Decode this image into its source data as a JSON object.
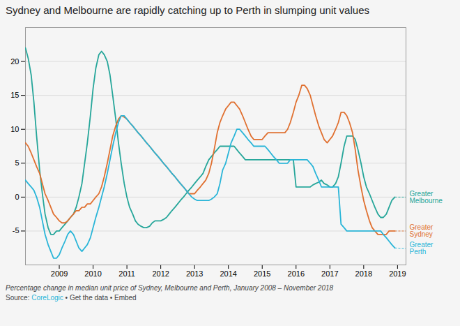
{
  "chart_data": {
    "type": "line",
    "title": "Sydney and Melbourne are rapidly catching up to Perth in slumping unit values",
    "subtitle": "Percentage change in median unit price of Sydney, Melbourne and Perth, January 2008 – November 2018",
    "source_text": "Source: ",
    "source_link": "CoreLogic",
    "source_extra": " • Get the data • Embed",
    "x": [
      2008.0,
      2008.08,
      2008.17,
      2008.25,
      2008.33,
      2008.42,
      2008.5,
      2008.58,
      2008.67,
      2008.75,
      2008.83,
      2008.92,
      2009.0,
      2009.08,
      2009.17,
      2009.25,
      2009.33,
      2009.42,
      2009.5,
      2009.58,
      2009.67,
      2009.75,
      2009.83,
      2009.92,
      2010.0,
      2010.08,
      2010.17,
      2010.25,
      2010.33,
      2010.42,
      2010.5,
      2010.58,
      2010.67,
      2010.75,
      2010.83,
      2010.92,
      2011.0,
      2011.08,
      2011.17,
      2011.25,
      2011.33,
      2011.42,
      2011.5,
      2011.58,
      2011.67,
      2011.75,
      2011.83,
      2011.92,
      2012.0,
      2012.08,
      2012.17,
      2012.25,
      2012.33,
      2012.42,
      2012.5,
      2012.58,
      2012.67,
      2012.75,
      2012.83,
      2012.92,
      2013.0,
      2013.08,
      2013.17,
      2013.25,
      2013.33,
      2013.42,
      2013.5,
      2013.58,
      2013.67,
      2013.75,
      2013.83,
      2013.92,
      2014.0,
      2014.08,
      2014.17,
      2014.25,
      2014.33,
      2014.42,
      2014.5,
      2014.58,
      2014.67,
      2014.75,
      2014.83,
      2014.92,
      2015.0,
      2015.08,
      2015.17,
      2015.25,
      2015.33,
      2015.42,
      2015.5,
      2015.58,
      2015.67,
      2015.75,
      2015.83,
      2015.92,
      2016.0,
      2016.08,
      2016.17,
      2016.25,
      2016.33,
      2016.42,
      2016.5,
      2016.58,
      2016.67,
      2016.75,
      2016.83,
      2016.92,
      2017.0,
      2017.08,
      2017.17,
      2017.25,
      2017.33,
      2017.42,
      2017.5,
      2017.58,
      2017.67,
      2017.75,
      2017.83,
      2017.92,
      2018.0,
      2018.08,
      2018.17,
      2018.25,
      2018.33,
      2018.42,
      2018.5,
      2018.58,
      2018.67,
      2018.75,
      2018.83,
      2018.92
    ],
    "series": [
      {
        "name": "Greater\nMelbourne",
        "color": "#26a69a",
        "values": [
          22.0,
          20.5,
          18.0,
          14.0,
          9.0,
          4.0,
          0.5,
          -2.5,
          -4.5,
          -5.5,
          -5.5,
          -5.0,
          -5.0,
          -4.5,
          -4.0,
          -3.5,
          -3.0,
          -2.5,
          -1.5,
          0.0,
          2.0,
          5.0,
          8.0,
          12.0,
          16.0,
          19.0,
          21.0,
          21.5,
          21.0,
          20.0,
          18.0,
          15.0,
          11.5,
          8.0,
          5.0,
          2.0,
          0.0,
          -1.5,
          -2.5,
          -3.5,
          -4.0,
          -4.3,
          -4.5,
          -4.5,
          -4.3,
          -3.8,
          -3.5,
          -3.5,
          -3.5,
          -3.3,
          -3.0,
          -2.5,
          -2.0,
          -1.5,
          -1.0,
          -0.5,
          0.0,
          0.5,
          1.0,
          1.5,
          2.0,
          2.5,
          3.0,
          3.5,
          4.5,
          5.5,
          6.0,
          6.5,
          7.0,
          7.5,
          7.5,
          7.5,
          7.5,
          7.5,
          7.5,
          7.0,
          6.5,
          6.0,
          5.5,
          5.5,
          5.5,
          5.5,
          5.5,
          5.5,
          5.5,
          5.5,
          5.5,
          5.5,
          5.5,
          5.5,
          5.5,
          5.5,
          5.5,
          5.5,
          5.5,
          5.5,
          1.5,
          1.5,
          1.5,
          1.5,
          1.5,
          1.5,
          1.8,
          2.0,
          2.2,
          2.5,
          2.0,
          1.8,
          1.5,
          1.5,
          2.0,
          3.0,
          5.0,
          7.5,
          9.0,
          9.0,
          9.0,
          8.5,
          7.0,
          5.0,
          3.0,
          1.5,
          0.5,
          -0.5,
          -1.5,
          -2.5,
          -3.0,
          -3.0,
          -2.5,
          -1.5,
          -0.5,
          0.0
        ]
      },
      {
        "name": "Greater\nSydney",
        "color": "#e07030",
        "values": [
          8.0,
          7.5,
          6.5,
          5.5,
          4.5,
          3.5,
          2.0,
          0.5,
          -0.5,
          -1.5,
          -2.5,
          -3.0,
          -3.5,
          -3.8,
          -3.8,
          -3.5,
          -3.0,
          -2.5,
          -2.0,
          -2.0,
          -1.5,
          -1.5,
          -1.0,
          -1.0,
          -0.5,
          0.0,
          0.5,
          1.5,
          3.0,
          5.0,
          7.0,
          9.0,
          10.5,
          11.5,
          12.0,
          11.8,
          11.5,
          11.0,
          10.5,
          10.0,
          9.5,
          9.0,
          8.5,
          8.0,
          7.5,
          7.0,
          6.5,
          6.0,
          5.5,
          5.0,
          4.5,
          4.0,
          3.5,
          3.0,
          2.5,
          2.0,
          1.5,
          1.0,
          0.5,
          0.5,
          0.5,
          1.0,
          1.5,
          2.0,
          2.5,
          3.5,
          5.0,
          7.0,
          9.5,
          11.0,
          12.0,
          13.0,
          13.5,
          14.0,
          14.0,
          13.5,
          13.0,
          12.0,
          11.0,
          10.0,
          9.0,
          8.5,
          8.5,
          8.5,
          8.5,
          9.0,
          9.5,
          9.5,
          9.5,
          9.5,
          9.5,
          9.5,
          9.5,
          10.0,
          11.0,
          12.5,
          14.0,
          15.0,
          16.5,
          16.5,
          16.0,
          15.0,
          13.5,
          12.0,
          10.5,
          9.5,
          8.5,
          8.0,
          8.5,
          9.0,
          10.0,
          11.0,
          12.5,
          12.5,
          12.0,
          11.0,
          9.5,
          7.0,
          4.0,
          1.5,
          -0.5,
          -2.0,
          -3.5,
          -4.5,
          -5.0,
          -5.5,
          -5.5,
          -5.5,
          -5.5,
          -5.0,
          -5.0,
          -5.0
        ]
      },
      {
        "name": "Greater\nPerth",
        "color": "#29b5d8",
        "values": [
          2.5,
          2.0,
          1.5,
          1.0,
          0.0,
          -1.5,
          -3.5,
          -5.5,
          -7.0,
          -8.0,
          -9.0,
          -9.0,
          -8.5,
          -7.5,
          -6.5,
          -5.5,
          -5.0,
          -5.5,
          -6.5,
          -7.5,
          -8.0,
          -7.5,
          -7.0,
          -6.0,
          -4.5,
          -3.0,
          -1.5,
          0.0,
          1.5,
          3.5,
          5.5,
          7.5,
          9.5,
          11.0,
          12.0,
          12.0,
          11.5,
          11.0,
          10.5,
          10.0,
          9.5,
          9.0,
          8.5,
          8.0,
          7.5,
          7.0,
          6.5,
          6.0,
          5.5,
          5.0,
          4.5,
          4.0,
          3.5,
          3.0,
          2.5,
          2.0,
          1.5,
          1.0,
          0.5,
          0.0,
          -0.3,
          -0.5,
          -0.5,
          -0.5,
          -0.5,
          -0.5,
          -0.3,
          0.0,
          0.5,
          2.0,
          4.0,
          5.0,
          6.5,
          8.0,
          9.0,
          10.0,
          10.0,
          9.5,
          9.0,
          8.5,
          8.0,
          7.5,
          7.5,
          7.5,
          7.5,
          7.5,
          7.0,
          6.5,
          6.0,
          5.5,
          5.0,
          5.0,
          5.0,
          5.0,
          5.5,
          5.5,
          5.5,
          5.5,
          5.5,
          5.5,
          5.5,
          5.0,
          4.5,
          3.5,
          2.5,
          1.5,
          1.5,
          1.5,
          1.5,
          1.5,
          1.5,
          1.5,
          -4.0,
          -4.5,
          -5.0,
          -5.0,
          -5.0,
          -5.0,
          -5.0,
          -5.0,
          -5.0,
          -5.0,
          -5.0,
          -5.0,
          -5.0,
          -5.0,
          -5.0,
          -5.5,
          -6.0,
          -6.5,
          -7.0,
          -7.5
        ]
      }
    ],
    "xlim": [
      2008.0,
      2019.25
    ],
    "xticks": [
      2009,
      2010,
      2011,
      2012,
      2013,
      2014,
      2015,
      2016,
      2017,
      2018,
      2019
    ],
    "ylim": [
      -10,
      25
    ],
    "yticks": [
      -5,
      0,
      5,
      10,
      15,
      20
    ],
    "grid": true
  }
}
